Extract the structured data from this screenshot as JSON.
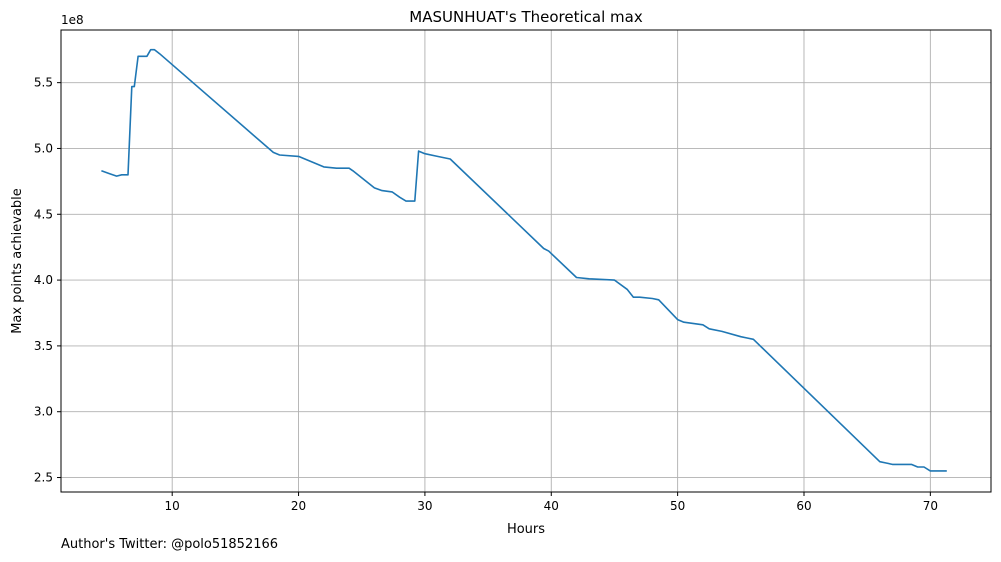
{
  "chart_data": {
    "type": "line",
    "title": "MASUNHUAT's Theoretical max",
    "xlabel": "Hours",
    "ylabel": "Max points achievable",
    "y_multiplier_label": "1e8",
    "xlim": [
      1.2,
      74.8
    ],
    "ylim": [
      2.39,
      5.9
    ],
    "xticks": [
      10,
      20,
      30,
      40,
      50,
      60,
      70
    ],
    "yticks": [
      2.5,
      3.0,
      3.5,
      4.0,
      4.5,
      5.0,
      5.5
    ],
    "ytick_labels": [
      "2.5",
      "3.0",
      "3.5",
      "4.0",
      "4.5",
      "5.0",
      "5.5"
    ],
    "grid": true,
    "line_color": "#1f77b4",
    "series": [
      {
        "x": [
          4.4,
          5.0,
          5.6,
          6.0,
          6.5,
          6.8,
          7.0,
          7.3,
          7.5,
          8.0,
          8.3,
          8.6,
          9.0,
          18.0,
          18.5,
          20.0,
          21.0,
          22.0,
          23.0,
          24.0,
          24.3,
          26.0,
          26.6,
          27.4,
          28.0,
          28.5,
          29.0,
          29.2,
          29.5,
          30.0,
          31.0,
          32.0,
          39.4,
          39.8,
          42.0,
          43.0,
          45.0,
          46.0,
          46.5,
          47.0,
          48.0,
          48.5,
          50.0,
          50.5,
          52.0,
          52.5,
          53.5,
          55.0,
          55.5,
          56.0,
          66.0,
          66.5,
          67.0,
          68.5,
          69.0,
          69.5,
          70.0,
          71.3
        ],
        "y": [
          4.83,
          4.81,
          4.79,
          4.8,
          4.8,
          5.47,
          5.47,
          5.7,
          5.7,
          5.7,
          5.75,
          5.75,
          5.72,
          4.97,
          4.95,
          4.94,
          4.9,
          4.86,
          4.85,
          4.85,
          4.83,
          4.7,
          4.68,
          4.67,
          4.63,
          4.6,
          4.6,
          4.6,
          4.98,
          4.96,
          4.94,
          4.92,
          4.24,
          4.22,
          4.02,
          4.01,
          4.0,
          3.93,
          3.87,
          3.87,
          3.86,
          3.85,
          3.7,
          3.68,
          3.66,
          3.63,
          3.61,
          3.57,
          3.56,
          3.55,
          2.62,
          2.61,
          2.6,
          2.6,
          2.58,
          2.58,
          2.55,
          2.55
        ]
      }
    ]
  },
  "footer": {
    "note": "Author's Twitter: @polo51852166"
  }
}
